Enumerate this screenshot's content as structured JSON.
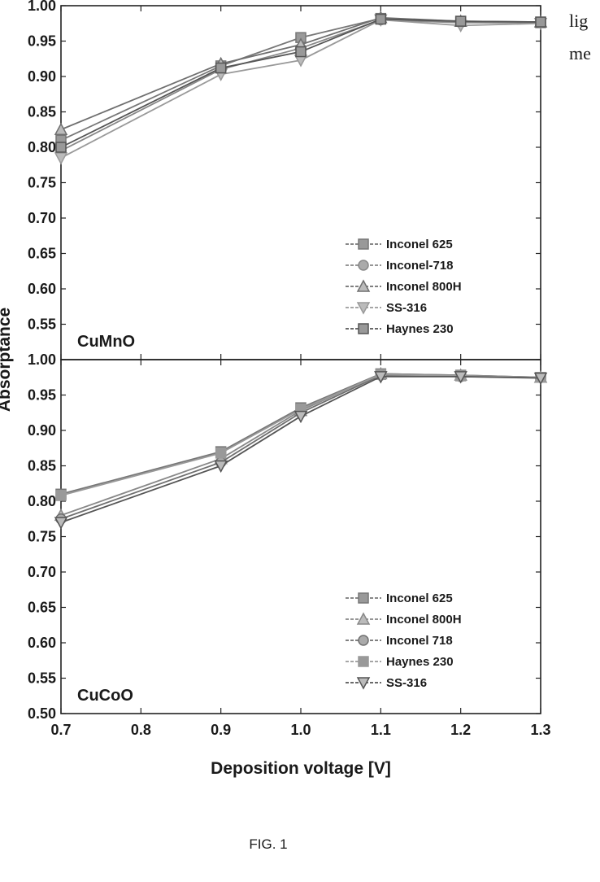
{
  "side_text": [
    "lig",
    "me"
  ],
  "figure_caption": "FIG. 1",
  "chart_data": [
    {
      "type": "line",
      "panel_label": "CuMnO",
      "xlabel": "",
      "ylabel": "Absorptance",
      "xlim": [
        0.7,
        1.3
      ],
      "ylim": [
        0.5,
        1.0
      ],
      "xticks": [
        "0.7",
        "0.8",
        "0.9",
        "1.0",
        "1.1",
        "1.2",
        "1.3"
      ],
      "yticks": [
        "0.55",
        "0.60",
        "0.65",
        "0.70",
        "0.75",
        "0.80",
        "0.85",
        "0.90",
        "0.95",
        "1.00"
      ],
      "x": [
        0.7,
        0.9,
        1.0,
        1.1,
        1.2,
        1.3
      ],
      "series": [
        {
          "name": "Inconel 625",
          "marker": "square",
          "values": [
            0.81,
            0.915,
            0.955,
            0.982,
            0.978,
            0.976
          ]
        },
        {
          "name": "Inconel-718",
          "marker": "circle",
          "values": [
            0.795,
            0.91,
            0.94,
            0.98,
            0.976,
            0.976
          ]
        },
        {
          "name": "Inconel 800H",
          "marker": "triangle-up",
          "values": [
            0.825,
            0.918,
            0.945,
            0.983,
            0.978,
            0.977
          ]
        },
        {
          "name": "SS-316",
          "marker": "triangle-down",
          "values": [
            0.785,
            0.903,
            0.923,
            0.98,
            0.972,
            0.975
          ]
        },
        {
          "name": "Haynes 230",
          "marker": "square",
          "values": [
            0.8,
            0.912,
            0.935,
            0.981,
            0.978,
            0.977
          ]
        }
      ],
      "legend_position": "bottom-right",
      "panel_label_position": "bottom-left"
    },
    {
      "type": "line",
      "panel_label": "CuCoO",
      "xlabel": "Deposition voltage [V]",
      "ylabel": "Absorptance",
      "xlim": [
        0.7,
        1.3
      ],
      "ylim": [
        0.5,
        1.0
      ],
      "xticks": [
        "0.7",
        "0.8",
        "0.9",
        "1.0",
        "1.1",
        "1.2",
        "1.3"
      ],
      "yticks": [
        "0.50",
        "0.55",
        "0.60",
        "0.65",
        "0.70",
        "0.75",
        "0.80",
        "0.85",
        "0.90",
        "0.95",
        "1.00"
      ],
      "x": [
        0.7,
        0.9,
        1.0,
        1.1,
        1.2,
        1.3
      ],
      "series": [
        {
          "name": "Inconel 625",
          "marker": "square",
          "values": [
            0.81,
            0.87,
            0.932,
            0.98,
            0.978,
            0.975
          ]
        },
        {
          "name": "Inconel 800H",
          "marker": "triangle-up",
          "values": [
            0.78,
            0.86,
            0.928,
            0.98,
            0.978,
            0.975
          ]
        },
        {
          "name": "Inconel 718",
          "marker": "circle",
          "values": [
            0.775,
            0.855,
            0.925,
            0.978,
            0.976,
            0.975
          ]
        },
        {
          "name": "Haynes 230",
          "marker": "square",
          "values": [
            0.808,
            0.868,
            0.93,
            0.979,
            0.977,
            0.975
          ]
        },
        {
          "name": "SS-316",
          "marker": "triangle-down",
          "values": [
            0.77,
            0.85,
            0.92,
            0.976,
            0.976,
            0.974
          ]
        }
      ],
      "legend_position": "bottom-right",
      "panel_label_position": "bottom-left"
    }
  ]
}
